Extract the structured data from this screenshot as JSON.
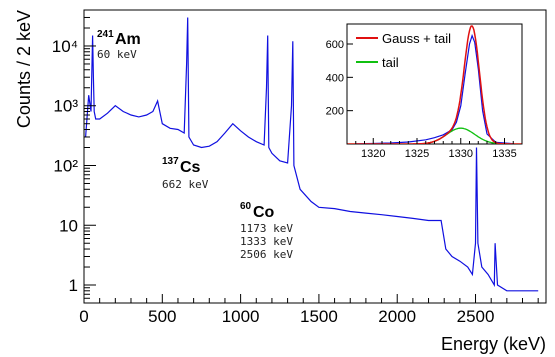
{
  "chart_data": [
    {
      "type": "line",
      "xlabel": "Energy (keV)",
      "ylabel": "Counts / 2 keV",
      "xlim": [
        0,
        2950
      ],
      "ylim": [
        0.5,
        40000
      ],
      "y_scale": "log",
      "x_ticks": [
        0,
        500,
        1000,
        1500,
        2000,
        2500
      ],
      "x_tick_labels": [
        "0",
        "500",
        "1000",
        "1500",
        "2000",
        "2500"
      ],
      "y_ticks": [
        1,
        10,
        100,
        1000,
        10000
      ],
      "y_tick_labels": [
        "1",
        "10",
        "10²",
        "10³",
        "10⁴"
      ],
      "grid": false,
      "series": [
        {
          "color": "#1010e0",
          "x": [
            10,
            30,
            45,
            55,
            60,
            65,
            75,
            100,
            150,
            200,
            250,
            300,
            350,
            400,
            440,
            470,
            500,
            550,
            600,
            640,
            655,
            662,
            670,
            700,
            750,
            800,
            850,
            900,
            950,
            1000,
            1050,
            1100,
            1150,
            1165,
            1173,
            1180,
            1200,
            1250,
            1300,
            1325,
            1333,
            1340,
            1380,
            1450,
            1500,
            1600,
            1700,
            1800,
            1900,
            2000,
            2100,
            2200,
            2280,
            2310,
            2350,
            2400,
            2450,
            2480,
            2500,
            2506,
            2515,
            2540,
            2580,
            2620,
            2625,
            2640,
            2700,
            2800,
            2900
          ],
          "y": [
            300,
            1500,
            800,
            15000,
            3000,
            800,
            600,
            600,
            750,
            1000,
            800,
            700,
            650,
            700,
            800,
            1200,
            500,
            420,
            400,
            350,
            5000,
            30000,
            300,
            220,
            200,
            210,
            250,
            350,
            500,
            380,
            300,
            250,
            220,
            2000,
            15000,
            200,
            160,
            120,
            110,
            1000,
            12000,
            100,
            40,
            25,
            20,
            19,
            17,
            16,
            15,
            14,
            13,
            12,
            12,
            4,
            3,
            2.5,
            2,
            1.5,
            5,
            200,
            5,
            2,
            1.5,
            1,
            5,
            1,
            0.8,
            0.8,
            0.8
          ]
        }
      ],
      "annotations": [
        {
          "isotope_mass": "241",
          "isotope_name": "Am",
          "energies": [
            "60 keV"
          ]
        },
        {
          "isotope_mass": "137",
          "isotope_name": "Cs",
          "energies": [
            "662 keV"
          ]
        },
        {
          "isotope_mass": "60",
          "isotope_name": "Co",
          "energies": [
            "1173 keV",
            "1333 keV",
            "2506 keV"
          ]
        }
      ]
    },
    {
      "type": "line",
      "xlim": [
        1317,
        1337
      ],
      "ylim": [
        0,
        720
      ],
      "x_ticks": [
        1320,
        1325,
        1330,
        1335
      ],
      "x_tick_labels": [
        "1320",
        "1325",
        "1330",
        "1335"
      ],
      "y_ticks": [
        200,
        400,
        600
      ],
      "y_tick_labels": [
        "200",
        "400",
        "600"
      ],
      "grid": false,
      "legend_placement": "top-left",
      "series": [
        {
          "name": "Gauss + tail",
          "color": "#e01010",
          "gauss_amplitude": 640,
          "gauss_mean": 1331.3,
          "gauss_sigma": 0.85,
          "tail_amplitude": 95,
          "tail_mean": 1330.0,
          "tail_sigma": 1.6
        },
        {
          "name": "tail",
          "color": "#10c010"
        },
        {
          "color": "#1010e0",
          "x": [
            1318,
            1320,
            1322,
            1324,
            1326,
            1327,
            1328,
            1329,
            1329.5,
            1330,
            1330.5,
            1331,
            1331.3,
            1331.6,
            1332,
            1332.5,
            1333,
            1334,
            1336
          ],
          "y": [
            2,
            3,
            6,
            12,
            25,
            38,
            55,
            85,
            130,
            230,
            420,
            600,
            650,
            610,
            450,
            200,
            60,
            10,
            2
          ]
        }
      ]
    }
  ]
}
